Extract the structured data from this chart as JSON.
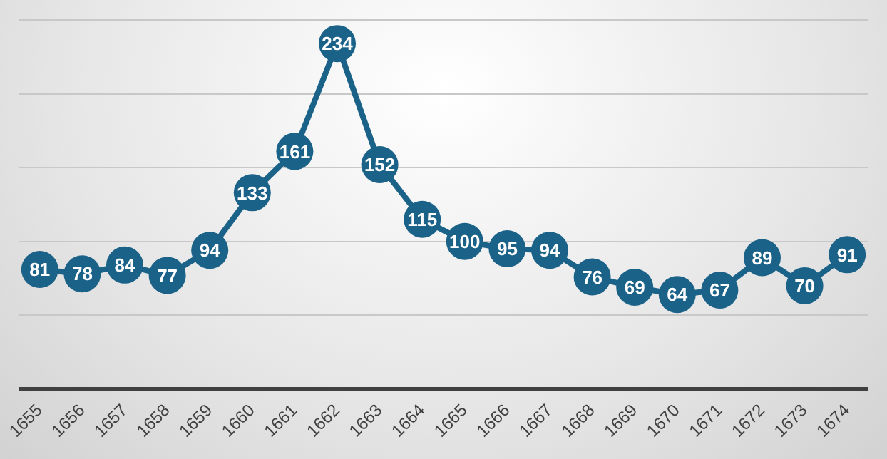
{
  "chart_data": {
    "type": "line",
    "categories": [
      "1655",
      "1656",
      "1657",
      "1658",
      "1659",
      "1660",
      "1661",
      "1662",
      "1663",
      "1664",
      "1665",
      "1666",
      "1667",
      "1668",
      "1669",
      "1670",
      "1671",
      "1672",
      "1673",
      "1674"
    ],
    "series": [
      {
        "color": "#1b6289",
        "values": [
          81,
          78,
          84,
          77,
          94,
          133,
          161,
          234,
          152,
          115,
          100,
          95,
          94,
          76,
          69,
          64,
          67,
          89,
          70,
          91
        ]
      }
    ],
    "ylim": [
      0,
      250
    ],
    "yticks": [
      {
        "value": 0,
        "label": null
      },
      {
        "value": 50,
        "label": null
      },
      {
        "value": 100,
        "label": null
      },
      {
        "value": 150,
        "label": null
      },
      {
        "value": 200,
        "label": null
      },
      {
        "value": 250,
        "label": null
      }
    ],
    "tick_labels": "x",
    "grid": "y",
    "marker": "circle",
    "line_style": "solid",
    "data_labels": true,
    "legend": false
  }
}
